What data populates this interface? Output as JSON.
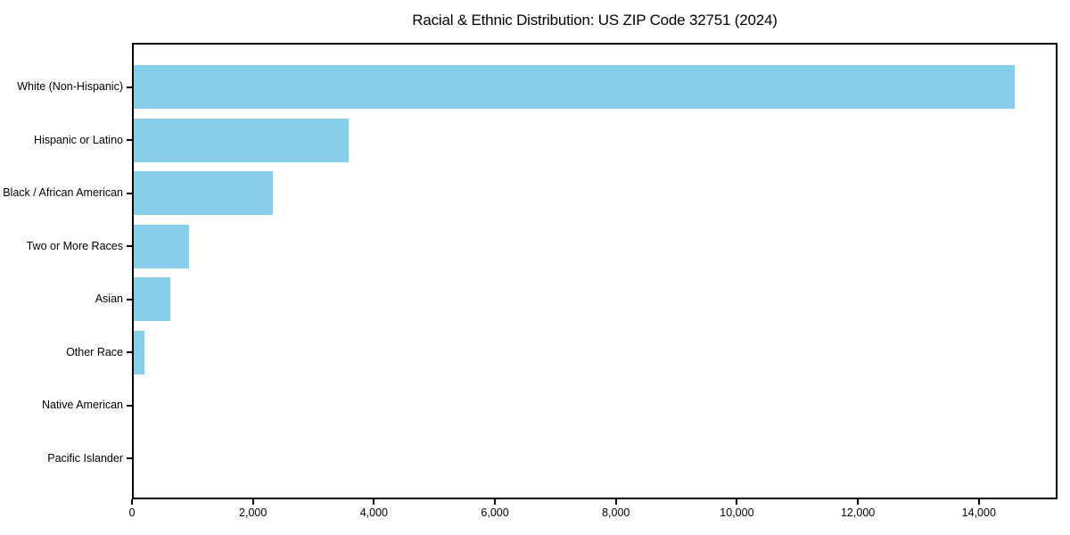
{
  "figure": {
    "background": "#ffffff",
    "frame_color": "#000000",
    "text_color": "#000000"
  },
  "chart_data": {
    "type": "bar",
    "orientation": "horizontal",
    "title": "Racial & Ethnic Distribution: US ZIP Code 32751 (2024)",
    "categories": [
      "White (Non-Hispanic)",
      "Hispanic or Latino",
      "Black / African American",
      "Two or More Races",
      "Asian",
      "Other Race",
      "Native American",
      "Pacific Islander"
    ],
    "values": [
      14560,
      3550,
      2300,
      910,
      600,
      170,
      0,
      0
    ],
    "bar_color": "#87CEEB",
    "xlabel": "",
    "ylabel": "",
    "xlim": [
      0,
      15300
    ],
    "xticks": [
      0,
      2000,
      4000,
      6000,
      8000,
      10000,
      12000,
      14000
    ],
    "xtick_labels": [
      "0",
      "2,000",
      "4,000",
      "6,000",
      "8,000",
      "10,000",
      "12,000",
      "14,000"
    ],
    "grid": false,
    "legend_position": "none"
  }
}
